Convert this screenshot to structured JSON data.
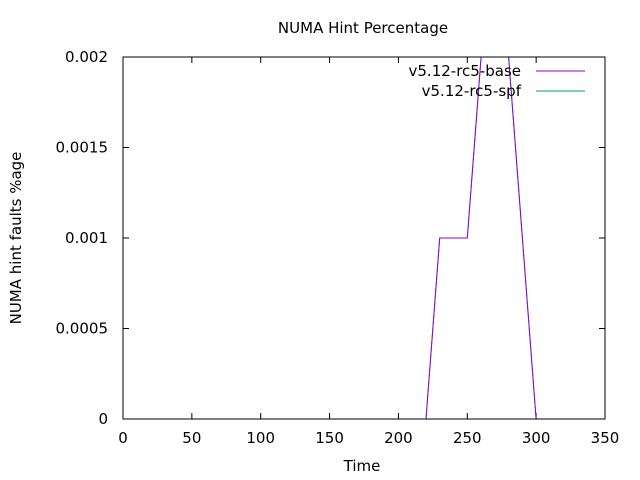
{
  "chart_data": {
    "type": "line",
    "title": "NUMA Hint Percentage",
    "xlabel": "Time",
    "ylabel": "NUMA hint faults %age",
    "xlim": [
      0,
      350
    ],
    "ylim": [
      0,
      0.002
    ],
    "x_ticks": [
      0,
      50,
      100,
      150,
      200,
      250,
      300,
      350
    ],
    "y_ticks": [
      "0",
      "0.0005",
      "0.001",
      "0.0015",
      "0.002"
    ],
    "grid": false,
    "legend_position": "top-right",
    "series": [
      {
        "name": "v5.12-rc5-base",
        "color": "#9400d3",
        "x": [
          0,
          220,
          230,
          250,
          260,
          280,
          290,
          300
        ],
        "y": [
          0,
          0,
          0.001,
          0.001,
          0.002,
          0.002,
          0.001,
          0
        ]
      },
      {
        "name": "v5.12-rc5-spf",
        "color": "#009e73",
        "x": [
          0,
          220,
          230,
          250,
          260,
          280,
          290,
          300
        ],
        "y": [
          0,
          0,
          0.001,
          0.001,
          0.002,
          0.002,
          0.001,
          0
        ]
      }
    ]
  }
}
